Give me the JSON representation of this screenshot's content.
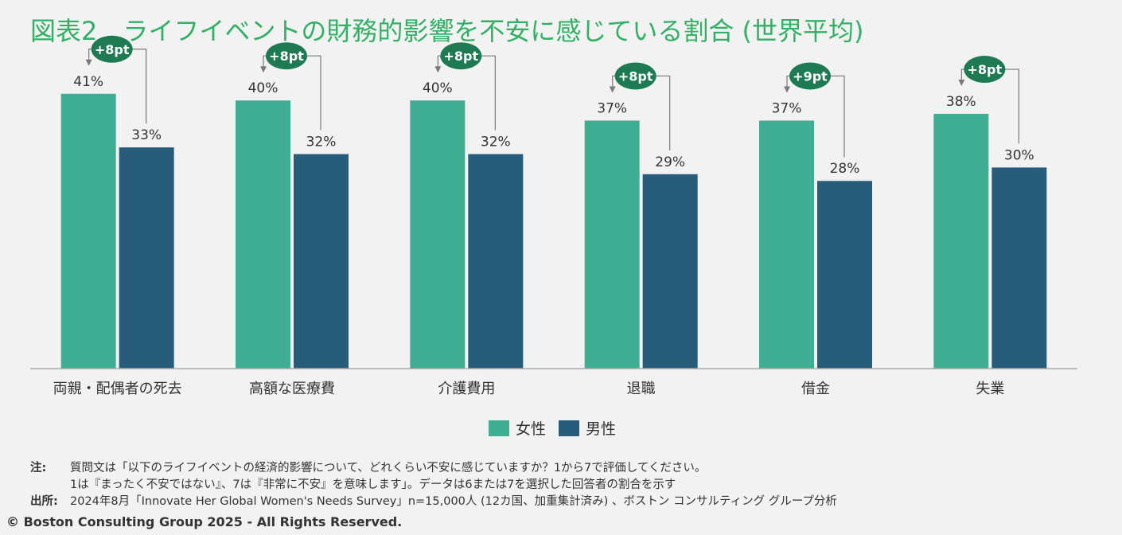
{
  "title": "図表2　ライフイベントの財務的影響を不安に感じている割合 (世界平均)",
  "colors": {
    "female": "#3fae92",
    "male": "#275c7b",
    "badge": "#1e7a52",
    "axis": "#aaaaaa",
    "title": "#32b166"
  },
  "chart_data": {
    "type": "bar",
    "categories": [
      "両親・配偶者の死去",
      "高額な医療費",
      "介護費用",
      "退職",
      "借金",
      "失業"
    ],
    "series": [
      {
        "name": "女性",
        "values": [
          41,
          40,
          40,
          37,
          37,
          38
        ]
      },
      {
        "name": "男性",
        "values": [
          33,
          32,
          32,
          29,
          28,
          30
        ]
      }
    ],
    "value_labels": {
      "female": [
        "41%",
        "40%",
        "40%",
        "37%",
        "37%",
        "38%"
      ],
      "male": [
        "33%",
        "32%",
        "32%",
        "29%",
        "28%",
        "30%"
      ]
    },
    "differences": [
      "+8pt",
      "+8pt",
      "+8pt",
      "+8pt",
      "+9pt",
      "+8pt"
    ],
    "ylim": [
      0,
      50
    ],
    "legend_position": "bottom-center",
    "grid": false
  },
  "legend": {
    "female": "女性",
    "male": "男性"
  },
  "notes": {
    "note_label": "注:",
    "note_line1": "質問文は「以下のライフイベントの経済的影響について、どれくらい不安に感じていますか？1から7で評価してください。",
    "note_line2": "1は『まったく不安ではない』、7は『非常に不安』を意味します」。データは6または7を選択した回答者の割合を示す",
    "source_label": "出所:",
    "source_text": "2024年8月「Innovate Her Global Women's Needs Survey」n=15,000人 (12カ国、加重集計済み) 、ボストン コンサルティング グループ分析"
  },
  "copyright": "© Boston Consulting Group 2025 - All Rights Reserved."
}
